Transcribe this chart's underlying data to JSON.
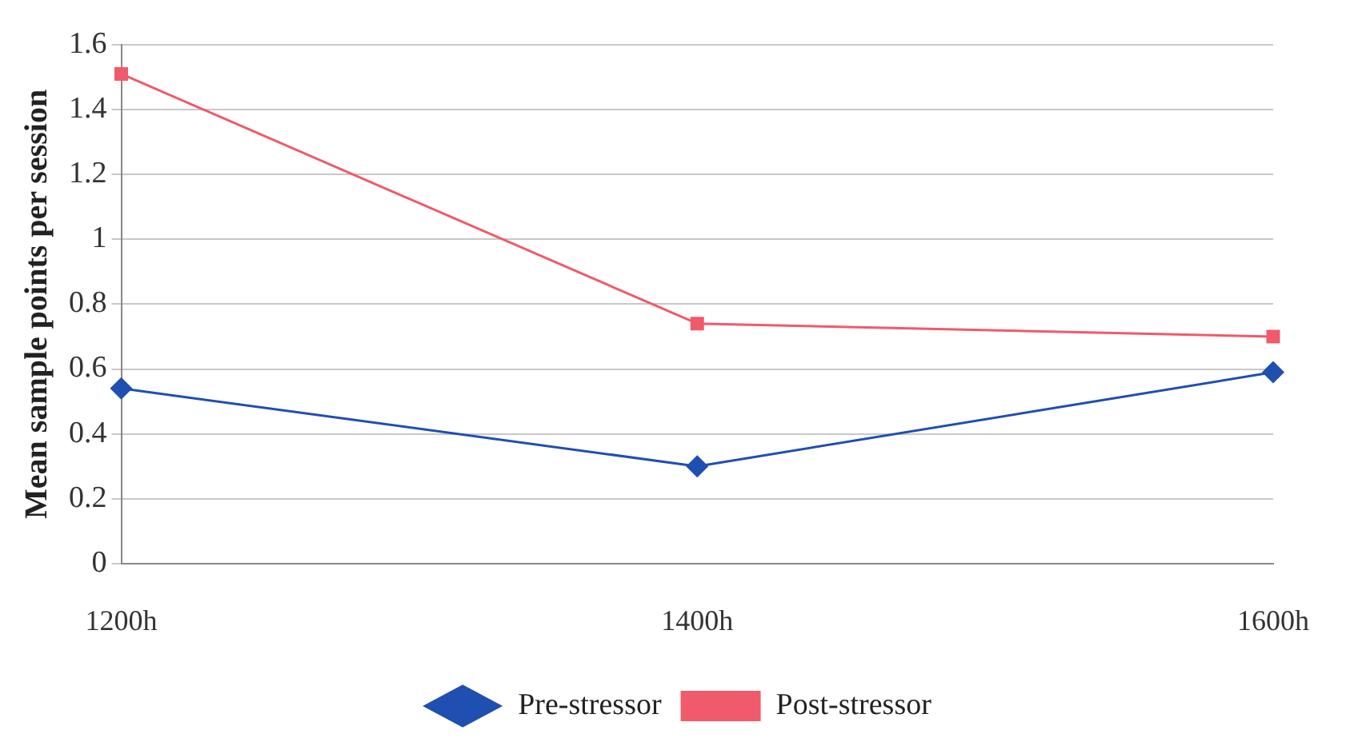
{
  "chart_data": {
    "type": "line",
    "ylabel": "Mean sample points per session",
    "categories": [
      "1200h",
      "1400h",
      "1600h"
    ],
    "series": [
      {
        "name": "Pre-stressor",
        "color": "#1f4fb0",
        "marker": "diamond",
        "values": [
          0.54,
          0.3,
          0.59
        ]
      },
      {
        "name": "Post-stressor",
        "color": "#f05a6a",
        "marker": "square",
        "values": [
          1.51,
          0.74,
          0.7
        ]
      }
    ],
    "ylim": [
      0,
      1.6
    ],
    "yticks": [
      0,
      0.2,
      0.4,
      0.6,
      0.8,
      1,
      1.2,
      1.4,
      1.6
    ],
    "grid": "y",
    "legend": "bottom",
    "line_style": "solid"
  }
}
